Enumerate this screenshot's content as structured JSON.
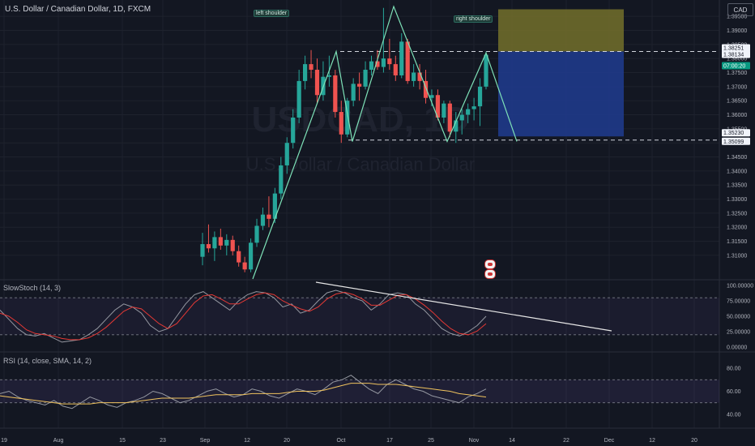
{
  "header": {
    "symbol": "U.S. Dollar / Canadian Dollar, 1D, FXCM",
    "currency": "CAD"
  },
  "watermark": {
    "ticker": "USDCAD, 1D",
    "name": "U.S. Dollar / Canadian Dollar"
  },
  "annotations": {
    "left_shoulder": "left shoulder",
    "right_shoulder": "right shoulder"
  },
  "colors": {
    "bg": "#131722",
    "up": "#26a69a",
    "down": "#ef5350",
    "stop_zone": "#6e6a2a",
    "target_zone": "#1f3a8a",
    "pattern": "#7ee2b8",
    "stoch_k": "#9598a1",
    "stoch_d": "#e53935",
    "rsi": "#9598a1",
    "rsi_ma": "#f0c35e"
  },
  "chart_data": [
    {
      "type": "candlestick",
      "title": "U.S. Dollar / Canadian Dollar, 1D, FXCM",
      "ylim": [
        1.3,
        1.4
      ],
      "y_ticks": [
        "1.39500",
        "1.39000",
        "1.38500",
        "1.38000",
        "1.37500",
        "1.37000",
        "1.36500",
        "1.36000",
        "1.35500",
        "1.35000",
        "1.34500",
        "1.34000",
        "1.33500",
        "1.33000",
        "1.32500",
        "1.32000",
        "1.31500",
        "1.31000"
      ],
      "x_ticks": [
        "19",
        "Aug",
        "15",
        "23",
        "Sep",
        "12",
        "20",
        "Oct",
        "17",
        "25",
        "Nov",
        "14",
        "22",
        "Dec",
        "12",
        "20"
      ],
      "price_labels": [
        {
          "text": "1.38251",
          "value": 1.38251,
          "kind": "stop"
        },
        {
          "text": "1.38134",
          "value": 1.38134,
          "kind": "current"
        },
        {
          "text": "07:00:20",
          "value": 1.3773,
          "kind": "countdown"
        },
        {
          "text": "1.35230",
          "value": 1.3523,
          "kind": "entry"
        },
        {
          "text": "1.35099",
          "value": 1.35099,
          "kind": "target"
        }
      ],
      "candles": [
        {
          "x": "Sep 1",
          "o": 1.3095,
          "h": 1.318,
          "l": 1.3065,
          "c": 1.314
        },
        {
          "x": "Sep 2",
          "o": 1.314,
          "h": 1.321,
          "l": 1.311,
          "c": 1.3125
        },
        {
          "x": "Sep 5",
          "o": 1.3125,
          "h": 1.3185,
          "l": 1.308,
          "c": 1.3165
        },
        {
          "x": "Sep 6",
          "o": 1.3165,
          "h": 1.3195,
          "l": 1.312,
          "c": 1.3135
        },
        {
          "x": "Sep 7",
          "o": 1.3135,
          "h": 1.3175,
          "l": 1.31,
          "c": 1.3155
        },
        {
          "x": "Sep 8",
          "o": 1.3155,
          "h": 1.317,
          "l": 1.31,
          "c": 1.3115
        },
        {
          "x": "Sep 9",
          "o": 1.3115,
          "h": 1.3135,
          "l": 1.306,
          "c": 1.3075
        },
        {
          "x": "Sep 12",
          "o": 1.3075,
          "h": 1.3095,
          "l": 1.304,
          "c": 1.305
        },
        {
          "x": "Sep 13",
          "o": 1.305,
          "h": 1.316,
          "l": 1.304,
          "c": 1.3145
        },
        {
          "x": "Sep 14",
          "o": 1.3145,
          "h": 1.323,
          "l": 1.313,
          "c": 1.3205
        },
        {
          "x": "Sep 15",
          "o": 1.3205,
          "h": 1.327,
          "l": 1.319,
          "c": 1.3245
        },
        {
          "x": "Sep 16",
          "o": 1.3245,
          "h": 1.331,
          "l": 1.32,
          "c": 1.323
        },
        {
          "x": "Sep 19",
          "o": 1.323,
          "h": 1.334,
          "l": 1.3215,
          "c": 1.332
        },
        {
          "x": "Sep 20",
          "o": 1.332,
          "h": 1.345,
          "l": 1.33,
          "c": 1.342
        },
        {
          "x": "Sep 21",
          "o": 1.342,
          "h": 1.352,
          "l": 1.339,
          "c": 1.35
        },
        {
          "x": "Sep 22",
          "o": 1.35,
          "h": 1.362,
          "l": 1.348,
          "c": 1.359
        },
        {
          "x": "Sep 23",
          "o": 1.359,
          "h": 1.376,
          "l": 1.357,
          "c": 1.372
        },
        {
          "x": "Sep 26",
          "o": 1.372,
          "h": 1.381,
          "l": 1.369,
          "c": 1.378
        },
        {
          "x": "Sep 27",
          "o": 1.378,
          "h": 1.383,
          "l": 1.373,
          "c": 1.376
        },
        {
          "x": "Sep 28",
          "o": 1.376,
          "h": 1.38,
          "l": 1.364,
          "c": 1.367
        },
        {
          "x": "Sep 29",
          "o": 1.367,
          "h": 1.379,
          "l": 1.365,
          "c": 1.3735
        },
        {
          "x": "Sep 30",
          "o": 1.3735,
          "h": 1.381,
          "l": 1.37,
          "c": 1.374
        },
        {
          "x": "Oct 3",
          "o": 1.374,
          "h": 1.376,
          "l": 1.359,
          "c": 1.361
        },
        {
          "x": "Oct 4",
          "o": 1.361,
          "h": 1.365,
          "l": 1.35,
          "c": 1.353
        },
        {
          "x": "Oct 5",
          "o": 1.353,
          "h": 1.366,
          "l": 1.352,
          "c": 1.365
        },
        {
          "x": "Oct 6",
          "o": 1.365,
          "h": 1.373,
          "l": 1.363,
          "c": 1.371
        },
        {
          "x": "Oct 7",
          "o": 1.371,
          "h": 1.375,
          "l": 1.365,
          "c": 1.37
        },
        {
          "x": "Oct 10",
          "o": 1.37,
          "h": 1.379,
          "l": 1.369,
          "c": 1.376
        },
        {
          "x": "Oct 11",
          "o": 1.376,
          "h": 1.381,
          "l": 1.374,
          "c": 1.379
        },
        {
          "x": "Oct 12",
          "o": 1.379,
          "h": 1.383,
          "l": 1.376,
          "c": 1.377
        },
        {
          "x": "Oct 13",
          "o": 1.377,
          "h": 1.398,
          "l": 1.375,
          "c": 1.38
        },
        {
          "x": "Oct 14",
          "o": 1.38,
          "h": 1.387,
          "l": 1.376,
          "c": 1.378
        },
        {
          "x": "Oct 17",
          "o": 1.378,
          "h": 1.381,
          "l": 1.372,
          "c": 1.374
        },
        {
          "x": "Oct 18",
          "o": 1.374,
          "h": 1.389,
          "l": 1.373,
          "c": 1.386
        },
        {
          "x": "Oct 19",
          "o": 1.386,
          "h": 1.387,
          "l": 1.371,
          "c": 1.372
        },
        {
          "x": "Oct 20",
          "o": 1.372,
          "h": 1.378,
          "l": 1.37,
          "c": 1.375
        },
        {
          "x": "Oct 21",
          "o": 1.375,
          "h": 1.378,
          "l": 1.369,
          "c": 1.372
        },
        {
          "x": "Oct 24",
          "o": 1.372,
          "h": 1.376,
          "l": 1.364,
          "c": 1.366
        },
        {
          "x": "Oct 25",
          "o": 1.366,
          "h": 1.369,
          "l": 1.363,
          "c": 1.367
        },
        {
          "x": "Oct 26",
          "o": 1.367,
          "h": 1.369,
          "l": 1.358,
          "c": 1.359
        },
        {
          "x": "Oct 27",
          "o": 1.359,
          "h": 1.365,
          "l": 1.357,
          "c": 1.364
        },
        {
          "x": "Oct 28",
          "o": 1.364,
          "h": 1.365,
          "l": 1.352,
          "c": 1.354
        },
        {
          "x": "Oct 31",
          "o": 1.354,
          "h": 1.361,
          "l": 1.35,
          "c": 1.358
        },
        {
          "x": "Nov 1",
          "o": 1.358,
          "h": 1.362,
          "l": 1.353,
          "c": 1.36
        },
        {
          "x": "Nov 2",
          "o": 1.36,
          "h": 1.364,
          "l": 1.357,
          "c": 1.362
        },
        {
          "x": "Nov 3",
          "o": 1.362,
          "h": 1.366,
          "l": 1.358,
          "c": 1.363
        },
        {
          "x": "Nov 4",
          "o": 1.363,
          "h": 1.373,
          "l": 1.356,
          "c": 1.37
        },
        {
          "x": "Nov 7",
          "o": 1.37,
          "h": 1.3825,
          "l": 1.369,
          "c": 1.3813
        }
      ]
    },
    {
      "type": "line",
      "title": "SlowStoch (14, 3)",
      "ylim": [
        0,
        100
      ],
      "y_ticks": [
        "100.00000",
        "75.00000",
        "50.00000",
        "25.00000",
        "0.00000"
      ],
      "series": [
        {
          "values": [
            60,
            45,
            30,
            20,
            18,
            22,
            15,
            8,
            10,
            12,
            20,
            30,
            45,
            60,
            70,
            65,
            55,
            35,
            25,
            30,
            50,
            70,
            85,
            90,
            80,
            70,
            60,
            75,
            85,
            90,
            88,
            80,
            65,
            70,
            55,
            60,
            75,
            88,
            92,
            88,
            80,
            75,
            60,
            70,
            85,
            88,
            85,
            70,
            60,
            45,
            30,
            22,
            18,
            25,
            35,
            50
          ]
        },
        {
          "values": [
            55,
            50,
            40,
            28,
            22,
            20,
            18,
            14,
            12,
            12,
            15,
            22,
            32,
            45,
            58,
            65,
            62,
            50,
            38,
            30,
            38,
            55,
            72,
            83,
            85,
            78,
            70,
            70,
            78,
            85,
            88,
            85,
            75,
            68,
            62,
            58,
            65,
            78,
            86,
            89,
            85,
            78,
            68,
            68,
            76,
            84,
            85,
            78,
            68,
            56,
            42,
            30,
            22,
            20,
            26,
            38
          ]
        }
      ]
    },
    {
      "type": "line",
      "title": "RSI (14, close, SMA, 14, 2)",
      "ylim": [
        30,
        90
      ],
      "y_ticks": [
        "80.00",
        "60.00",
        "40.00"
      ],
      "series": [
        {
          "values": [
            58,
            60,
            55,
            52,
            50,
            48,
            52,
            47,
            45,
            50,
            55,
            52,
            48,
            46,
            50,
            52,
            55,
            60,
            58,
            54,
            50,
            52,
            56,
            60,
            62,
            58,
            55,
            57,
            62,
            60,
            56,
            54,
            58,
            62,
            60,
            57,
            62,
            68,
            70,
            74,
            68,
            62,
            58,
            66,
            70,
            66,
            62,
            60,
            56,
            54,
            52,
            50,
            55,
            58,
            62
          ]
        },
        {
          "values": [
            56,
            55,
            54,
            53,
            52,
            51,
            50,
            49,
            49,
            49,
            49,
            50,
            50,
            50,
            50,
            51,
            52,
            53,
            54,
            54,
            54,
            54,
            55,
            56,
            57,
            57,
            57,
            57,
            58,
            58,
            58,
            58,
            59,
            60,
            60,
            60,
            61,
            63,
            65,
            67,
            67,
            67,
            66,
            66,
            66,
            65,
            64,
            63,
            62,
            61,
            60,
            58,
            57,
            56,
            55
          ]
        }
      ]
    }
  ]
}
